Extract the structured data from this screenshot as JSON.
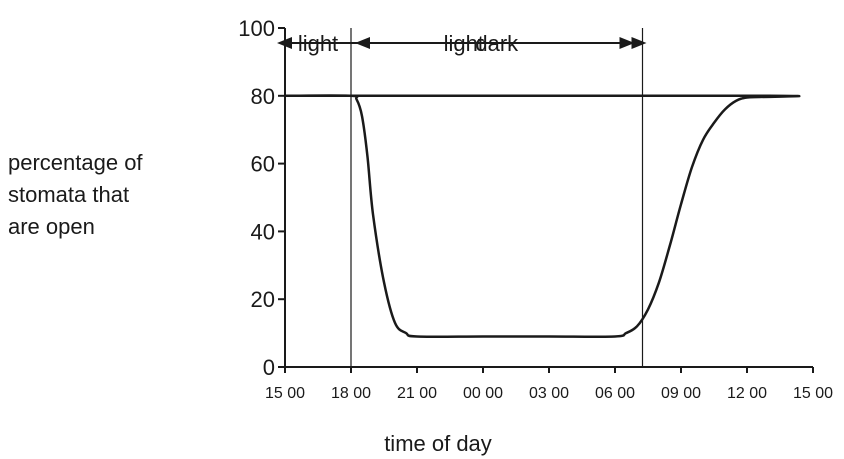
{
  "chart_data": {
    "type": "line",
    "title": "",
    "xlabel": "time of day",
    "ylabel_lines": [
      "percentage of",
      "stomata that",
      "are open"
    ],
    "ylim": [
      0,
      100
    ],
    "yticks": [
      0,
      20,
      40,
      60,
      80,
      100
    ],
    "xticks": [
      "15 00",
      "18 00",
      "21 00",
      "00 00",
      "03 00",
      "06 00",
      "09 00",
      "12 00",
      "15 00"
    ],
    "grid": false,
    "series": [
      {
        "x": [
          "15 00",
          "18 00",
          "18 15",
          "18 30",
          "18 45",
          "19 00",
          "19 30",
          "20 00",
          "20 30",
          "21 00",
          "00 00",
          "03 00",
          "06 00",
          "06 30",
          "07 00",
          "07 30",
          "08 00",
          "08 30",
          "09 00",
          "09 30",
          "10 00",
          "10 30",
          "11 00",
          "11 30",
          "12 00",
          "13 00",
          "15 00"
        ],
        "values": [
          80,
          80,
          79,
          74,
          62,
          45,
          25,
          13,
          10,
          9,
          9,
          9,
          9,
          10,
          12,
          17,
          25,
          36,
          48,
          59,
          67,
          72,
          76,
          78.5,
          79.5,
          80,
          80
        ]
      }
    ],
    "periods": [
      {
        "label": "light",
        "from": "15 00",
        "to": "18 00",
        "arrows": "none"
      },
      {
        "label": "dark",
        "from": "18 00",
        "to": "07 15",
        "arrows": "both"
      },
      {
        "label": "light",
        "from": "07 15",
        "to": "15 00",
        "arrows": "both"
      }
    ],
    "boundaries": [
      "18 00",
      "07 15"
    ]
  }
}
